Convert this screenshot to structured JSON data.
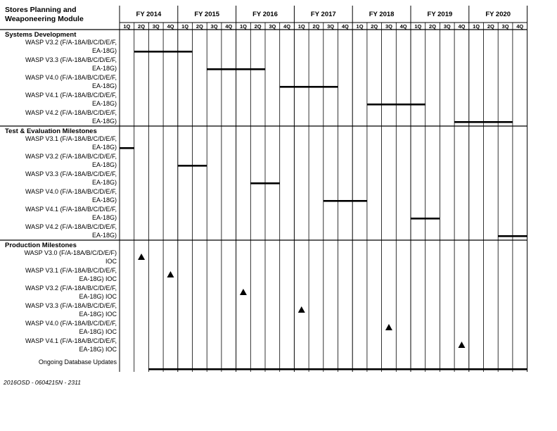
{
  "header": {
    "title": "Stores Planning and\nWeaponeering Module"
  },
  "footer": {
    "code": "2016OSD - 0604215N - 2311"
  },
  "chart_data": {
    "type": "gantt",
    "fiscal_years": [
      "FY 2014",
      "FY 2015",
      "FY 2016",
      "FY 2017",
      "FY 2018",
      "FY 2019",
      "FY 2020"
    ],
    "quarters": [
      "1Q",
      "2Q",
      "3Q",
      "4Q"
    ],
    "sections": [
      {
        "title": "Systems Development",
        "rows": [
          {
            "label": [
              "WASP V3.2 (F/A-18A/B/C/D/E/F,",
              "EA-18G)"
            ],
            "kind": "bar",
            "start": "FY2014 2Q",
            "end": "FY2015 1Q"
          },
          {
            "label": [
              "WASP V3.3 (F/A-18A/B/C/D/E/F,",
              "EA-18G)"
            ],
            "kind": "bar",
            "start": "FY2015 3Q",
            "end": "FY2016 2Q"
          },
          {
            "label": [
              "WASP V4.0 (F/A-18A/B/C/D/E/F,",
              "EA-18G)"
            ],
            "kind": "bar",
            "start": "FY2016 4Q",
            "end": "FY2017 3Q"
          },
          {
            "label": [
              "WASP V4.1 (F/A-18A/B/C/D/E/F,",
              "EA-18G)"
            ],
            "kind": "bar",
            "start": "FY2018 2Q",
            "end": "FY2019 1Q"
          },
          {
            "label": [
              "WASP V4.2 (F/A-18A/B/C/D/E/F,",
              "EA-18G)"
            ],
            "kind": "bar",
            "start": "FY2019 4Q",
            "end": "FY2020 3Q"
          }
        ]
      },
      {
        "title": "Test & Evaluation Milestones",
        "rows": [
          {
            "label": [
              "WASP V3.1 (F/A-18A/B/C/D/E/F,",
              "EA-18G)"
            ],
            "kind": "bar",
            "start": "FY2014 1Q",
            "end": "FY2014 1Q"
          },
          {
            "label": [
              "WASP V3.2 (F/A-18A/B/C/D/E/F,",
              "EA-18G)"
            ],
            "kind": "bar",
            "start": "FY2015 1Q",
            "end": "FY2015 2Q"
          },
          {
            "label": [
              "WASP V3.3 (F/A-18A/B/C/D/E/F,",
              "EA-18G)"
            ],
            "kind": "bar",
            "start": "FY2016 2Q",
            "end": "FY2016 3Q"
          },
          {
            "label": [
              "WASP V4.0 (F/A-18A/B/C/D/E/F,",
              "EA-18G)"
            ],
            "kind": "bar",
            "start": "FY2017 3Q",
            "end": "FY2018 1Q"
          },
          {
            "label": [
              "WASP V4.1 (F/A-18A/B/C/D/E/F,",
              "EA-18G)"
            ],
            "kind": "bar",
            "start": "FY2019 1Q",
            "end": "FY2019 2Q"
          },
          {
            "label": [
              "WASP V4.2 (F/A-18A/B/C/D/E/F,",
              "EA-18G)"
            ],
            "kind": "bar",
            "start": "FY2020 3Q",
            "end": "FY2020 4Q"
          }
        ]
      },
      {
        "title": "Production Milestones",
        "rows": [
          {
            "label": [
              "WASP V3.0 (F/A-18A/B/C/D/E/F)",
              "IOC"
            ],
            "kind": "milestone",
            "at": "FY2014 2Q"
          },
          {
            "label": [
              "WASP V3.1 (F/A-18A/B/C/D/E/F,",
              "EA-18G) IOC"
            ],
            "kind": "milestone",
            "at": "FY2014 4Q"
          },
          {
            "label": [
              "WASP V3.2 (F/A-18A/B/C/D/E/F,",
              "EA-18G) IOC"
            ],
            "kind": "milestone",
            "at": "FY2016 1Q"
          },
          {
            "label": [
              "WASP V3.3 (F/A-18A/B/C/D/E/F,",
              "EA-18G) IOC"
            ],
            "kind": "milestone",
            "at": "FY2017 1Q"
          },
          {
            "label": [
              "WASP V4.0 (F/A-18A/B/C/D/E/F,",
              "EA-18G) IOC"
            ],
            "kind": "milestone",
            "at": "FY2018 3Q"
          },
          {
            "label": [
              "WASP V4.1 (F/A-18A/B/C/D/E/F,",
              "EA-18G) IOC"
            ],
            "kind": "milestone",
            "at": "FY2019 4Q"
          },
          {
            "label": [
              "Ongoing Database Updates"
            ],
            "kind": "bar",
            "start": "FY2014 3Q",
            "end": "FY2020 4Q"
          }
        ]
      }
    ]
  }
}
